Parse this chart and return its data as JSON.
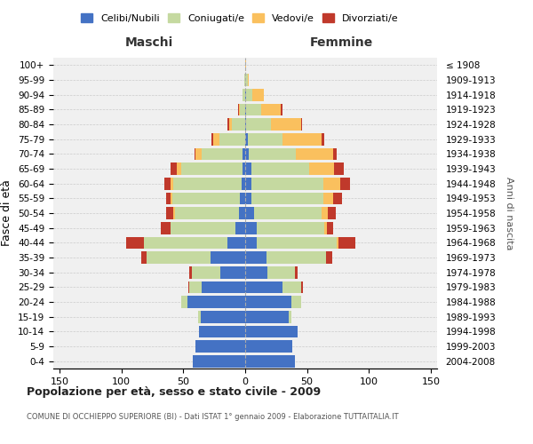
{
  "age_groups": [
    "0-4",
    "5-9",
    "10-14",
    "15-19",
    "20-24",
    "25-29",
    "30-34",
    "35-39",
    "40-44",
    "45-49",
    "50-54",
    "55-59",
    "60-64",
    "65-69",
    "70-74",
    "75-79",
    "80-84",
    "85-89",
    "90-94",
    "95-99",
    "100+"
  ],
  "birth_years": [
    "2004-2008",
    "1999-2003",
    "1994-1998",
    "1989-1993",
    "1984-1988",
    "1979-1983",
    "1974-1978",
    "1969-1973",
    "1964-1968",
    "1959-1963",
    "1954-1958",
    "1949-1953",
    "1944-1948",
    "1939-1943",
    "1934-1938",
    "1929-1933",
    "1924-1928",
    "1919-1923",
    "1914-1918",
    "1909-1913",
    "≤ 1908"
  ],
  "males": {
    "celibe": [
      42,
      40,
      37,
      36,
      47,
      35,
      20,
      28,
      14,
      8,
      5,
      4,
      3,
      2,
      2,
      0,
      0,
      0,
      0,
      0,
      0
    ],
    "coniugato": [
      0,
      0,
      0,
      2,
      5,
      10,
      23,
      52,
      68,
      52,
      52,
      55,
      55,
      50,
      33,
      21,
      11,
      4,
      2,
      1,
      0
    ],
    "vedovo": [
      0,
      0,
      0,
      0,
      0,
      0,
      0,
      0,
      0,
      0,
      1,
      1,
      2,
      3,
      5,
      5,
      2,
      1,
      0,
      0,
      0
    ],
    "divorziato": [
      0,
      0,
      0,
      0,
      0,
      1,
      2,
      4,
      14,
      8,
      6,
      4,
      5,
      5,
      1,
      1,
      1,
      1,
      0,
      0,
      0
    ]
  },
  "females": {
    "nubile": [
      40,
      38,
      42,
      35,
      37,
      30,
      18,
      17,
      9,
      9,
      7,
      5,
      5,
      5,
      3,
      2,
      1,
      1,
      1,
      0,
      0
    ],
    "coniugata": [
      0,
      0,
      0,
      2,
      8,
      15,
      22,
      48,
      65,
      55,
      55,
      58,
      58,
      47,
      38,
      28,
      20,
      12,
      5,
      2,
      0
    ],
    "vedova": [
      0,
      0,
      0,
      0,
      0,
      0,
      0,
      0,
      1,
      2,
      5,
      8,
      14,
      20,
      30,
      32,
      24,
      16,
      9,
      1,
      1
    ],
    "divorziata": [
      0,
      0,
      0,
      0,
      0,
      2,
      2,
      5,
      14,
      5,
      6,
      7,
      8,
      8,
      3,
      2,
      1,
      1,
      0,
      0,
      0
    ]
  },
  "colors": {
    "celibe": "#4472c4",
    "coniugato": "#c5d9a0",
    "vedovo": "#fac05e",
    "divorziato": "#c0392b"
  },
  "legend_labels": [
    "Celibi/Nubili",
    "Coniugati/e",
    "Vedovi/e",
    "Divorziati/e"
  ],
  "title": "Popolazione per età, sesso e stato civile - 2009",
  "subtitle": "COMUNE DI OCCHIEPPO SUPERIORE (BI) - Dati ISTAT 1° gennaio 2009 - Elaborazione TUTTAITALIA.IT",
  "ylabel_left": "Fasce di età",
  "ylabel_right": "Anni di nascita",
  "xlabel_left": "Maschi",
  "xlabel_right": "Femmine",
  "xlim": 155,
  "background_color": "#ffffff",
  "grid_color": "#cccccc"
}
